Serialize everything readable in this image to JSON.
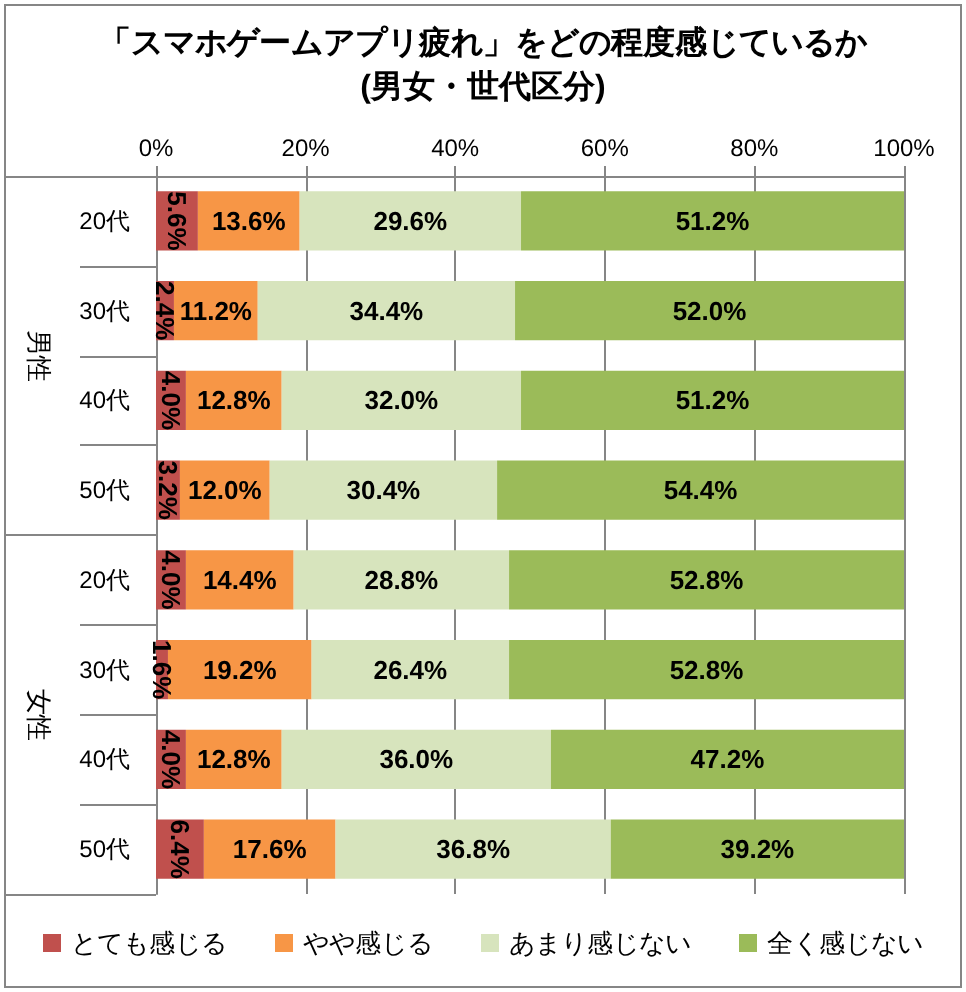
{
  "chart_data": {
    "type": "bar",
    "orientation": "horizontal",
    "stacked": true,
    "title": "「スマホゲームアプリ疲れ」をどの程度感じているか",
    "subtitle": "(男女・世代区分)",
    "categories": [
      "20代",
      "30代",
      "40代",
      "50代",
      "20代",
      "30代",
      "40代",
      "50代"
    ],
    "annotations": [
      "男性",
      "女性"
    ],
    "series": [
      {
        "name": "とても感じる",
        "color": "#c0504d",
        "values": [
          5.6,
          2.4,
          4.0,
          3.2,
          4.0,
          1.6,
          4.0,
          6.4
        ],
        "value_labels": [
          "5.6%",
          "2.4%",
          "4.0%",
          "3.2%",
          "4.0%",
          "1.6%",
          "4.0%",
          "6.4%"
        ]
      },
      {
        "name": "やや感じる",
        "color": "#f79646",
        "values": [
          13.6,
          11.2,
          12.8,
          12.0,
          14.4,
          19.2,
          12.8,
          17.6
        ],
        "value_labels": [
          "13.6%",
          "11.2%",
          "12.8%",
          "12.0%",
          "14.4%",
          "19.2%",
          "12.8%",
          "17.6%"
        ]
      },
      {
        "name": "あまり感じない",
        "color": "#d7e4bd",
        "values": [
          29.6,
          34.4,
          32.0,
          30.4,
          28.8,
          26.4,
          36.0,
          36.8
        ],
        "value_labels": [
          "29.6%",
          "34.4%",
          "32.0%",
          "30.4%",
          "28.8%",
          "26.4%",
          "36.0%",
          "36.8%"
        ]
      },
      {
        "name": "全く感じない",
        "color": "#9bbb59",
        "values": [
          51.2,
          52.0,
          51.2,
          54.4,
          52.8,
          52.8,
          47.2,
          39.2
        ],
        "value_labels": [
          "51.2%",
          "52.0%",
          "51.2%",
          "54.4%",
          "52.8%",
          "52.8%",
          "47.2%",
          "39.2%"
        ]
      }
    ],
    "xlim": [
      0,
      100
    ],
    "xticks": [
      {
        "value": 0,
        "label": "0%"
      },
      {
        "value": 20,
        "label": "20%"
      },
      {
        "value": 40,
        "label": "40%"
      },
      {
        "value": 60,
        "label": "60%"
      },
      {
        "value": 80,
        "label": "80%"
      },
      {
        "value": 100,
        "label": "100%"
      }
    ],
    "grid": "x",
    "legend": "bottom"
  }
}
